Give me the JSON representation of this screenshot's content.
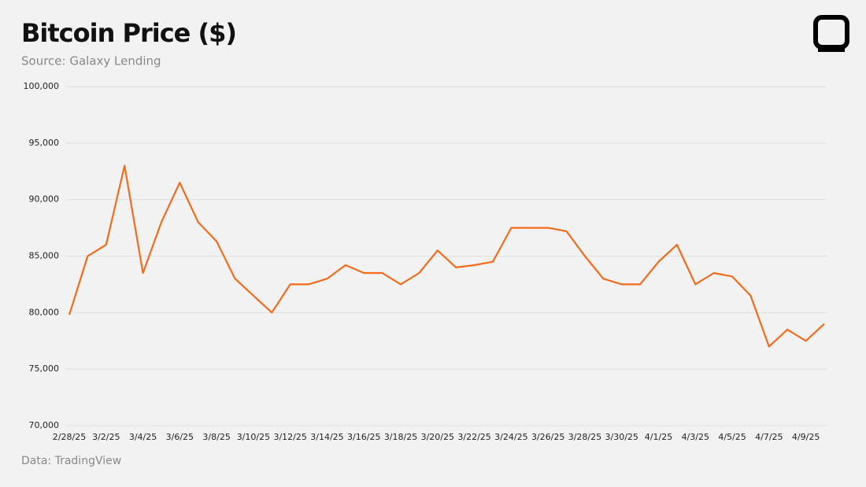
{
  "chart_data": {
    "type": "line",
    "title": "Bitcoin Price ($)",
    "subtitle": "Source: Galaxy Lending",
    "footnote": "Data: TradingView",
    "x": [
      "2/28/25",
      null,
      "3/2/25",
      null,
      "3/4/25",
      null,
      "3/6/25",
      null,
      "3/8/25",
      null,
      "3/10/25",
      null,
      "3/12/25",
      null,
      "3/14/25",
      null,
      "3/16/25",
      null,
      "3/18/25",
      null,
      "3/20/25",
      null,
      "3/22/25",
      null,
      "3/24/25",
      null,
      "3/26/25",
      null,
      "3/28/25",
      null,
      "3/30/25",
      null,
      "4/1/25",
      null,
      "4/3/25",
      null,
      "4/5/25",
      null,
      "4/7/25",
      null,
      "4/9/25",
      null
    ],
    "series": [
      {
        "name": "Bitcoin",
        "color": "#f26b1d",
        "values": [
          79800,
          85000,
          86000,
          93000,
          83500,
          88000,
          91500,
          88000,
          86300,
          83000,
          81500,
          80000,
          82500,
          82500,
          83000,
          84200,
          83500,
          83500,
          82500,
          83500,
          85500,
          84000,
          84200,
          84500,
          87500,
          87500,
          87500,
          87200,
          85000,
          83000,
          82500,
          82500,
          84500,
          86000,
          82500,
          83500,
          83200,
          81500,
          77000,
          78500,
          77500,
          79000
        ]
      }
    ],
    "ylim": [
      70000,
      100000
    ],
    "yticks": [
      {
        "value": 70000,
        "label": "70,000"
      },
      {
        "value": 75000,
        "label": "75,000"
      },
      {
        "value": 80000,
        "label": "80,000"
      },
      {
        "value": 85000,
        "label": "85,000"
      },
      {
        "value": 90000,
        "label": "90,000"
      },
      {
        "value": 95000,
        "label": "95,000"
      },
      {
        "value": 100000,
        "label": "100,000"
      }
    ],
    "grid": true
  }
}
